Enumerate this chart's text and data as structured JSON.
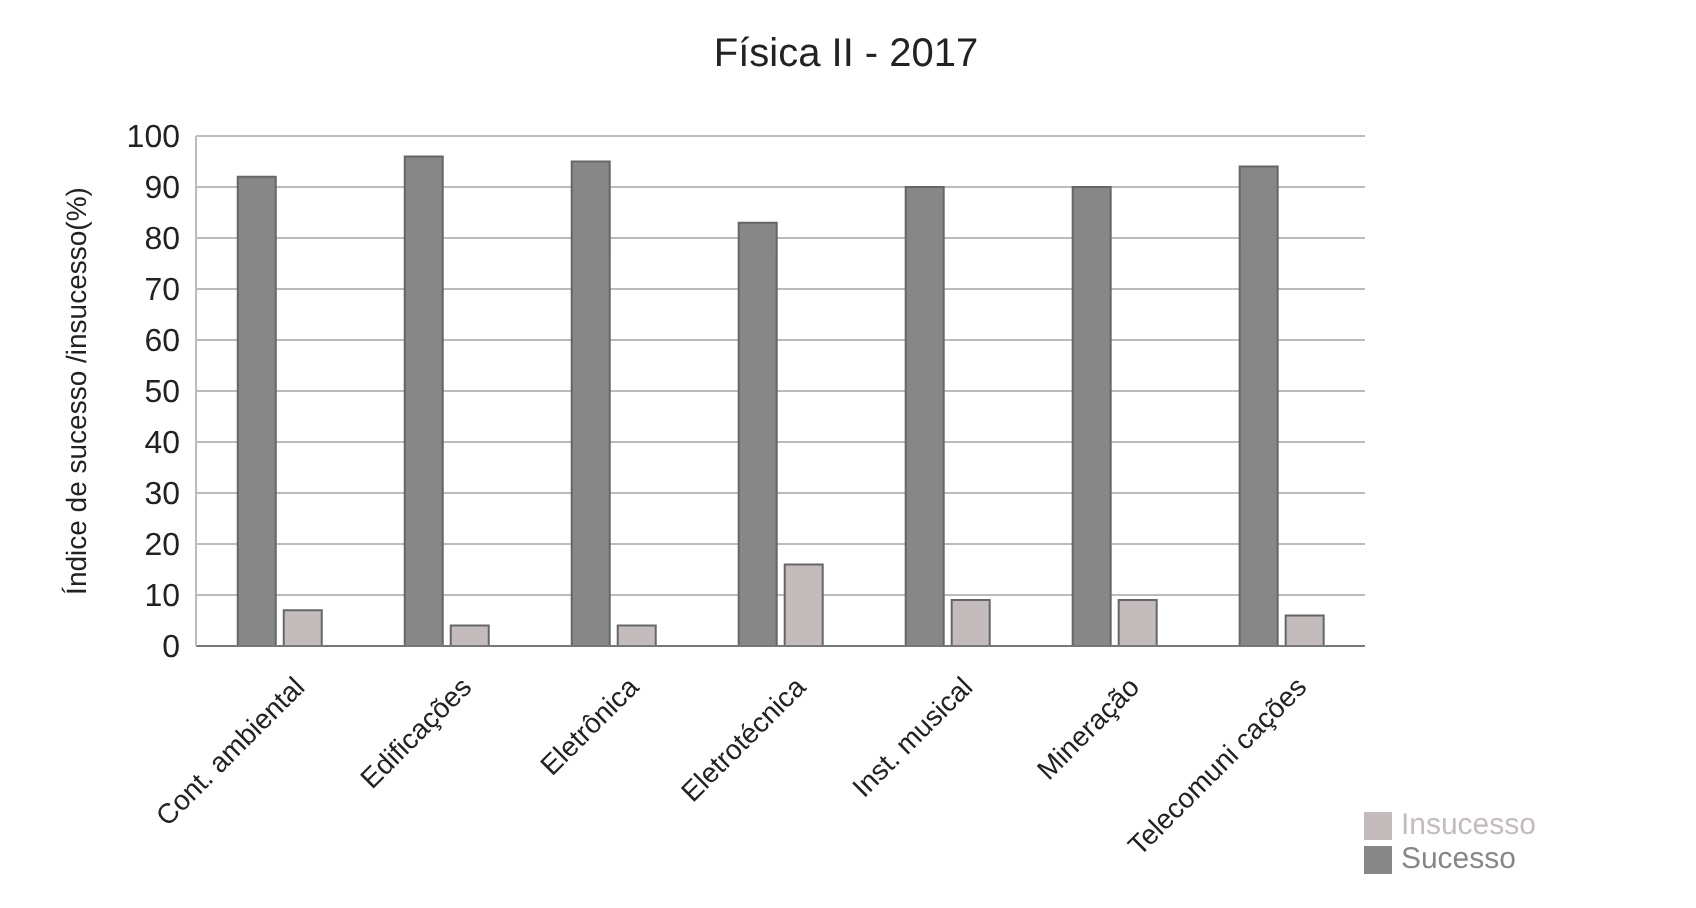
{
  "chart_data": {
    "type": "bar",
    "title": "Física II -  2017",
    "ylabel": "Índice de sucesso /insucesso(%)",
    "categories": [
      "Cont. ambiental",
      "Edificações",
      "Eletrônica",
      "Eletrotécnica",
      "Inst. musical",
      "Mineração",
      "Telecomuni cações"
    ],
    "series": [
      {
        "name": "Sucesso",
        "color": "#878787",
        "values": [
          92,
          96,
          95,
          83,
          90,
          90,
          94
        ]
      },
      {
        "name": "Insucesso",
        "color": "#c4bcbc",
        "values": [
          7,
          4,
          4,
          16,
          9,
          9,
          6
        ]
      }
    ],
    "ylim": [
      0,
      100
    ],
    "yticks": [
      0,
      10,
      20,
      30,
      40,
      50,
      60,
      70,
      80,
      90,
      100
    ],
    "grid": "y",
    "legend": "bottom right"
  }
}
